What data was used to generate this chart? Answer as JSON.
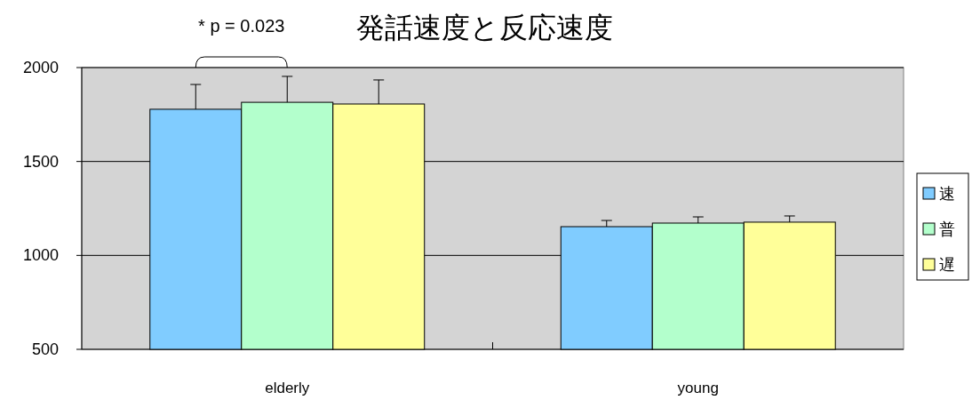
{
  "chart_data": {
    "type": "bar",
    "title": "発話速度と反応速度",
    "categories": [
      "elderly",
      "young"
    ],
    "series": [
      {
        "name": "速",
        "color": "#80ccff",
        "values": [
          1778,
          1153
        ],
        "errors": [
          [
            1778,
            1910
          ],
          [
            1153,
            1186
          ]
        ]
      },
      {
        "name": "普",
        "color": "#b3ffcc",
        "values": [
          1815,
          1172
        ],
        "errors": [
          [
            1815,
            1953
          ],
          [
            1172,
            1205
          ]
        ]
      },
      {
        "name": "遅",
        "color": "#ffff99",
        "values": [
          1806,
          1177
        ],
        "errors": [
          [
            1806,
            1934
          ],
          [
            1177,
            1210
          ]
        ]
      }
    ],
    "ylim": [
      500,
      2000
    ],
    "yticks": [
      500,
      1000,
      1500,
      2000
    ],
    "grid": "y",
    "legend": "right",
    "annotations": [
      "* p = 0.023"
    ]
  }
}
